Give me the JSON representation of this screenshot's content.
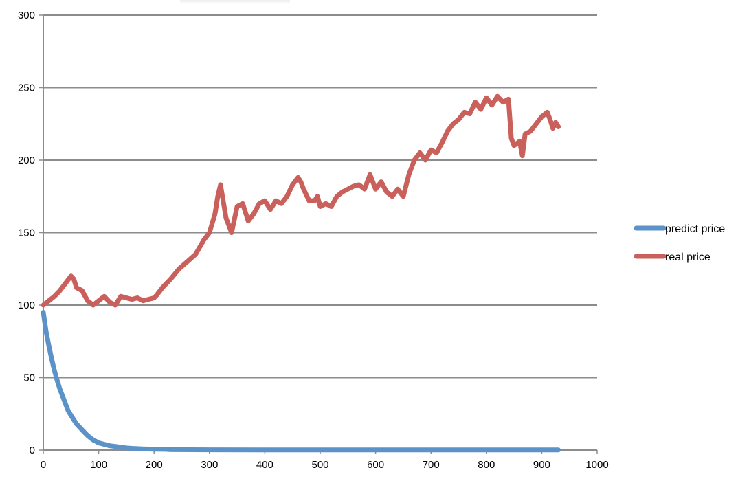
{
  "chart_data": {
    "type": "line",
    "title": "",
    "xlabel": "",
    "ylabel": "",
    "xlim": [
      0,
      1000
    ],
    "ylim": [
      0,
      300
    ],
    "x_ticks": [
      0,
      100,
      200,
      300,
      400,
      500,
      600,
      700,
      800,
      900,
      1000
    ],
    "y_ticks": [
      0,
      50,
      100,
      150,
      200,
      250,
      300
    ],
    "grid": "horizontal",
    "legend_position": "right",
    "colors": {
      "predict price": "#5b93c8",
      "real price": "#c9605c",
      "grid": "#8c8c8c",
      "axis": "#8c8c8c"
    },
    "series": [
      {
        "name": "predict price",
        "x": [
          0,
          5,
          10,
          15,
          20,
          25,
          30,
          35,
          40,
          45,
          50,
          55,
          60,
          65,
          70,
          75,
          80,
          85,
          90,
          95,
          100,
          110,
          120,
          130,
          140,
          150,
          160,
          170,
          180,
          200,
          220,
          230,
          300,
          400,
          500,
          600,
          700,
          800,
          900,
          930
        ],
        "y": [
          95,
          82,
          72,
          63,
          55,
          48,
          42,
          37,
          32,
          27,
          24,
          21,
          18,
          16,
          14,
          12,
          10,
          8.5,
          7,
          6,
          5,
          4,
          3,
          2.5,
          2,
          1.5,
          1.2,
          1,
          0.8,
          0.6,
          0.5,
          0.3,
          0.2,
          0.1,
          0.1,
          0.1,
          0.1,
          0.1,
          0.1,
          0.1
        ]
      },
      {
        "name": "real price",
        "x": [
          0,
          10,
          20,
          30,
          40,
          50,
          55,
          60,
          70,
          80,
          90,
          100,
          110,
          120,
          130,
          140,
          150,
          160,
          170,
          180,
          190,
          200,
          205,
          215,
          230,
          245,
          260,
          275,
          290,
          300,
          310,
          315,
          320,
          330,
          340,
          350,
          360,
          370,
          380,
          390,
          400,
          410,
          420,
          430,
          440,
          450,
          460,
          465,
          470,
          480,
          490,
          495,
          500,
          510,
          520,
          530,
          540,
          550,
          560,
          570,
          580,
          585,
          590,
          600,
          610,
          620,
          630,
          640,
          650,
          660,
          670,
          680,
          690,
          700,
          710,
          720,
          730,
          740,
          750,
          760,
          770,
          780,
          790,
          800,
          810,
          820,
          830,
          840,
          845,
          850,
          860,
          865,
          870,
          880,
          890,
          900,
          910,
          915,
          920,
          925,
          930
        ],
        "y": [
          100,
          103,
          106,
          110,
          115,
          120,
          118,
          112,
          110,
          103,
          100,
          103,
          106,
          102,
          100,
          106,
          105,
          104,
          105,
          103,
          104,
          105,
          107,
          112,
          118,
          125,
          130,
          135,
          145,
          150,
          163,
          175,
          183,
          160,
          150,
          168,
          170,
          158,
          163,
          170,
          172,
          166,
          172,
          170,
          175,
          183,
          188,
          185,
          180,
          172,
          172,
          175,
          168,
          170,
          168,
          175,
          178,
          180,
          182,
          183,
          180,
          185,
          190,
          180,
          185,
          178,
          175,
          180,
          175,
          190,
          200,
          205,
          200,
          207,
          205,
          212,
          220,
          225,
          228,
          233,
          232,
          240,
          235,
          243,
          238,
          244,
          240,
          242,
          215,
          210,
          213,
          203,
          218,
          220,
          225,
          230,
          233,
          228,
          222,
          226,
          223
        ]
      }
    ]
  }
}
